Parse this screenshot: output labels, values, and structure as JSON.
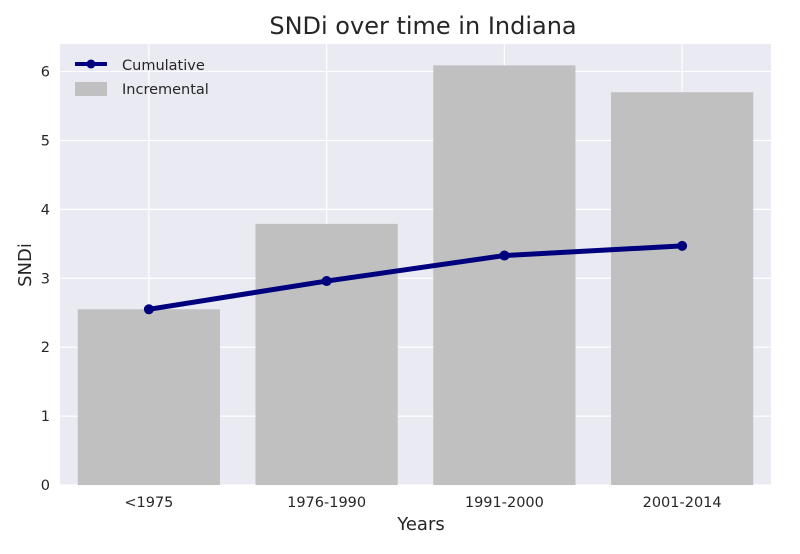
{
  "chart_data": {
    "type": "bar",
    "title": "SNDi over time in Indiana",
    "xlabel": "Years",
    "ylabel": "SNDi",
    "categories": [
      "<1975",
      "1976-1990",
      "1991-2000",
      "2001-2014"
    ],
    "ylim": [
      0,
      6.4
    ],
    "yticks": [
      0,
      1,
      2,
      3,
      4,
      5,
      6
    ],
    "grid": true,
    "legend_position": "top-left",
    "series": [
      {
        "name": "Incremental",
        "kind": "bar",
        "color": "#c0c0c0",
        "values": [
          2.55,
          3.79,
          6.09,
          5.7
        ]
      },
      {
        "name": "Cumulative",
        "kind": "line",
        "color": "#00007f",
        "values": [
          2.55,
          2.96,
          3.33,
          3.47
        ]
      }
    ],
    "background_color": "#eaeaf2",
    "grid_color": "#ffffff"
  }
}
